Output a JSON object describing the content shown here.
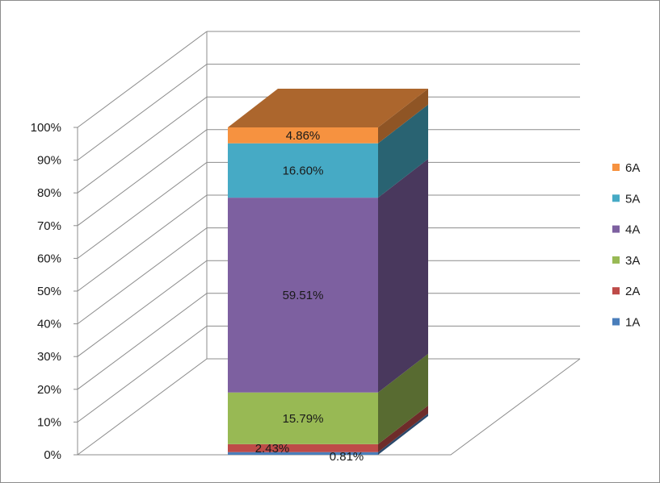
{
  "chart_data": {
    "type": "bar",
    "stacked": true,
    "percent_stacked": true,
    "three_d": true,
    "title": "",
    "xlabel": "",
    "ylabel": "",
    "ylim": [
      0,
      100
    ],
    "y_ticks": [
      "0%",
      "10%",
      "20%",
      "30%",
      "40%",
      "50%",
      "60%",
      "70%",
      "80%",
      "90%",
      "100%"
    ],
    "categories": [
      ""
    ],
    "series": [
      {
        "name": "1A",
        "values": [
          0.81
        ],
        "label": "0.81%",
        "color": "#4a7ebb"
      },
      {
        "name": "2A",
        "values": [
          2.43
        ],
        "label": "2.43%",
        "color": "#be4b48"
      },
      {
        "name": "3A",
        "values": [
          15.79
        ],
        "label": "15.79%",
        "color": "#98b954"
      },
      {
        "name": "4A",
        "values": [
          59.51
        ],
        "label": "59.51%",
        "color": "#7d60a0"
      },
      {
        "name": "5A",
        "values": [
          16.6
        ],
        "label": "16.60%",
        "color": "#46aac5"
      },
      {
        "name": "6A",
        "values": [
          4.86
        ],
        "label": "4.86%",
        "color": "#f69240"
      }
    ],
    "grid": true,
    "legend_position": "right"
  }
}
